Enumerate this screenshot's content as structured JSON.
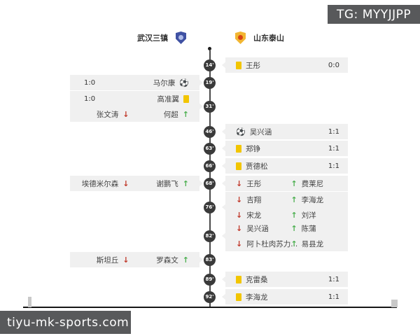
{
  "header": {
    "tg_badge": "TG: MYYJJPP",
    "home_team": {
      "name": "武汉三镇"
    },
    "away_team": {
      "name": "山东泰山"
    }
  },
  "watermark": "tiyu-mk-sports.com",
  "colors": {
    "banner_bg": "#58595b",
    "event_box_bg": "#f0f0f0",
    "badge_bg": "#3a3a3a",
    "yellow_card": "#f2c500",
    "sub_off_red": "#c0392b",
    "sub_on_green": "#4caf50",
    "home_logo_blue": "#3f51a3",
    "away_logo_gold": "#f2b632"
  },
  "icons": {
    "goal": "goal-ball-icon",
    "yellow_card": "yellow-card-icon",
    "sub_off": "sub-off-arrow-icon",
    "sub_on": "sub-on-arrow-icon"
  },
  "timeline": {
    "minutes": [
      "14'",
      "19'",
      "31'",
      "46'",
      "63'",
      "66'",
      "68'",
      "76'",
      "82'",
      "83'",
      "89'",
      "92'"
    ],
    "events": [
      {
        "minute": "14'",
        "side": "right",
        "rows": [
          {
            "type": "card",
            "player": "王彤",
            "score": "0:0"
          }
        ]
      },
      {
        "minute": "19'",
        "side": "left",
        "rows": [
          {
            "type": "goal",
            "player": "马尔康",
            "score": "1:0"
          }
        ]
      },
      {
        "minute": "31'",
        "side": "left",
        "rows": [
          {
            "type": "card",
            "player": "高准翼",
            "score": "1:0"
          },
          {
            "type": "sub",
            "off": "张文涛",
            "on": "何超"
          }
        ]
      },
      {
        "minute": "46'",
        "side": "right",
        "rows": [
          {
            "type": "goal",
            "player": "吴兴涵",
            "score": "1:1"
          }
        ]
      },
      {
        "minute": "63'",
        "side": "right",
        "rows": [
          {
            "type": "card",
            "player": "郑铮",
            "score": "1:1"
          }
        ]
      },
      {
        "minute": "66'",
        "side": "right",
        "rows": [
          {
            "type": "card",
            "player": "贾德松",
            "score": "1:1"
          }
        ]
      },
      {
        "minute": "68'",
        "side": "left",
        "rows": [
          {
            "type": "sub",
            "off": "埃德米尔森",
            "on": "谢鹏飞"
          }
        ]
      },
      {
        "minute": "68'",
        "side": "right",
        "rows": [
          {
            "type": "sub",
            "off": "王彤",
            "on": "费莱尼"
          }
        ]
      },
      {
        "minute": "76'",
        "side": "right",
        "rows": [
          {
            "type": "sub",
            "off": "吉翔",
            "on": "李海龙"
          },
          {
            "type": "sub",
            "off": "宋龙",
            "on": "刘洋"
          }
        ]
      },
      {
        "minute": "82'",
        "side": "right",
        "rows": [
          {
            "type": "sub",
            "off": "吴兴涵",
            "on": "陈蒲"
          },
          {
            "type": "sub",
            "off": "阿卜杜肉苏力...",
            "on": "易县龙"
          }
        ]
      },
      {
        "minute": "83'",
        "side": "left",
        "rows": [
          {
            "type": "sub",
            "off": "斯坦丘",
            "on": "罗森文"
          }
        ]
      },
      {
        "minute": "89'",
        "side": "right",
        "rows": [
          {
            "type": "card",
            "player": "克雷桑",
            "score": "1:1"
          }
        ]
      },
      {
        "minute": "92'",
        "side": "right",
        "rows": [
          {
            "type": "card",
            "player": "李海龙",
            "score": "1:1"
          }
        ]
      }
    ]
  }
}
